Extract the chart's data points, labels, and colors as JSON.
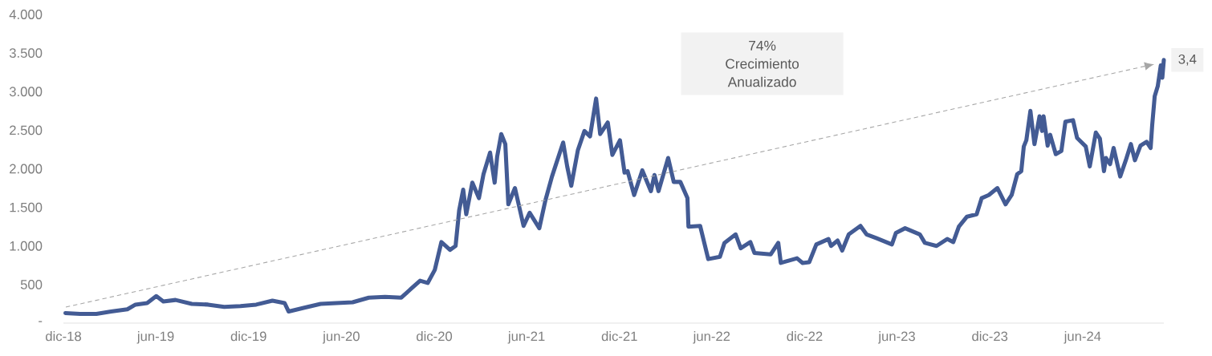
{
  "chart_data": {
    "type": "line",
    "x": [
      "2018-12-05",
      "2019-01-03",
      "2019-02-04",
      "2019-03-05",
      "2019-04-06",
      "2019-04-22",
      "2019-05-15",
      "2019-06-02",
      "2019-06-16",
      "2019-07-10",
      "2019-08-11",
      "2019-09-12",
      "2019-10-14",
      "2019-11-15",
      "2019-12-16",
      "2020-01-17",
      "2020-02-10",
      "2020-02-18",
      "2020-03-20",
      "2020-04-21",
      "2020-05-22",
      "2020-06-23",
      "2020-07-25",
      "2020-08-26",
      "2020-09-27",
      "2020-10-17",
      "2020-11-03",
      "2020-11-18",
      "2020-12-02",
      "2020-12-15",
      "2021-01-01",
      "2021-01-12",
      "2021-01-19",
      "2021-01-27",
      "2021-02-02",
      "2021-02-14",
      "2021-02-27",
      "2021-03-08",
      "2021-03-21",
      "2021-03-30",
      "2021-04-04",
      "2021-04-12",
      "2021-04-20",
      "2021-04-26",
      "2021-05-09",
      "2021-05-17",
      "2021-05-26",
      "2021-06-07",
      "2021-06-26",
      "2021-07-08",
      "2021-07-21",
      "2021-08-12",
      "2021-08-20",
      "2021-08-28",
      "2021-09-10",
      "2021-09-23",
      "2021-10-04",
      "2021-10-16",
      "2021-10-24",
      "2021-11-08",
      "2021-11-17",
      "2021-12-02",
      "2021-12-11",
      "2021-12-17",
      "2021-12-30",
      "2022-01-15",
      "2022-02-01",
      "2022-02-08",
      "2022-02-16",
      "2022-03-07",
      "2022-03-18",
      "2022-03-31",
      "2022-04-14",
      "2022-04-16",
      "2022-05-09",
      "2022-05-25",
      "2022-06-17",
      "2022-06-26",
      "2022-07-18",
      "2022-07-28",
      "2022-08-16",
      "2022-08-24",
      "2022-09-25",
      "2022-10-10",
      "2022-10-15",
      "2022-11-16",
      "2022-11-27",
      "2022-12-10",
      "2022-12-24",
      "2023-01-17",
      "2023-01-22",
      "2023-02-04",
      "2023-02-13",
      "2023-02-26",
      "2023-03-21",
      "2023-04-02",
      "2023-04-22",
      "2023-05-22",
      "2023-05-30",
      "2023-06-17",
      "2023-07-16",
      "2023-07-26",
      "2023-08-18",
      "2023-09-08",
      "2023-09-20",
      "2023-10-01",
      "2023-10-17",
      "2023-11-05",
      "2023-11-15",
      "2023-11-29",
      "2023-12-16",
      "2024-01-01",
      "2024-01-13",
      "2024-01-24",
      "2024-02-01",
      "2024-02-06",
      "2024-02-11",
      "2024-02-19",
      "2024-02-27",
      "2024-03-08",
      "2024-03-13",
      "2024-03-16",
      "2024-03-24",
      "2024-03-29",
      "2024-04-09",
      "2024-04-20",
      "2024-04-28",
      "2024-05-13",
      "2024-05-21",
      "2024-06-07",
      "2024-06-15",
      "2024-06-27",
      "2024-07-05",
      "2024-07-13",
      "2024-07-17",
      "2024-07-25",
      "2024-08-01",
      "2024-08-14",
      "2024-08-25",
      "2024-09-04",
      "2024-09-12",
      "2024-09-23",
      "2024-10-05",
      "2024-10-13",
      "2024-10-16",
      "2024-10-21",
      "2024-10-27",
      "2024-11-02",
      "2024-11-05",
      "2024-11-08"
    ],
    "series": [
      {
        "color": "#435b94",
        "line_style": "solid",
        "values": [
          130,
          120,
          120,
          150,
          180,
          240,
          260,
          350,
          280,
          300,
          250,
          240,
          210,
          220,
          240,
          290,
          260,
          150,
          200,
          250,
          260,
          270,
          330,
          340,
          330,
          450,
          550,
          520,
          690,
          1050,
          950,
          1000,
          1460,
          1730,
          1410,
          1820,
          1620,
          1930,
          2210,
          1820,
          2160,
          2450,
          2320,
          1540,
          1750,
          1520,
          1260,
          1430,
          1230,
          1590,
          1900,
          2340,
          2030,
          1780,
          2240,
          2490,
          2420,
          2910,
          2450,
          2600,
          2180,
          2370,
          1950,
          1970,
          1660,
          1980,
          1710,
          1920,
          1710,
          2140,
          1830,
          1830,
          1620,
          1250,
          1260,
          830,
          860,
          1040,
          1150,
          970,
          1050,
          910,
          890,
          1040,
          780,
          840,
          780,
          790,
          1020,
          1090,
          1000,
          1070,
          940,
          1150,
          1260,
          1150,
          1100,
          1020,
          1170,
          1230,
          1150,
          1040,
          1000,
          1090,
          1050,
          1250,
          1380,
          1410,
          1620,
          1660,
          1750,
          1540,
          1660,
          1930,
          1970,
          2290,
          2370,
          2750,
          2320,
          2680,
          2490,
          2680,
          2300,
          2440,
          2190,
          2230,
          2610,
          2630,
          2400,
          2290,
          2030,
          2470,
          2390,
          1970,
          2140,
          2060,
          2270,
          1900,
          2110,
          2320,
          2110,
          2300,
          2350,
          2270,
          2560,
          2940,
          3070,
          3340,
          3180,
          3410
        ]
      }
    ],
    "xticks": [
      {
        "value": "2018-12-01",
        "label": "dic-18"
      },
      {
        "value": "2019-06-01",
        "label": "jun-19"
      },
      {
        "value": "2019-12-01",
        "label": "dic-19"
      },
      {
        "value": "2020-06-01",
        "label": "jun-20"
      },
      {
        "value": "2020-12-01",
        "label": "dic-20"
      },
      {
        "value": "2021-06-01",
        "label": "jun-21"
      },
      {
        "value": "2021-12-01",
        "label": "dic-21"
      },
      {
        "value": "2022-06-01",
        "label": "jun-22"
      },
      {
        "value": "2022-12-01",
        "label": "dic-22"
      },
      {
        "value": "2023-06-01",
        "label": "jun-23"
      },
      {
        "value": "2023-12-01",
        "label": "dic-23"
      },
      {
        "value": "2024-06-01",
        "label": "jun-24"
      }
    ],
    "xlim": [
      "2018-12-01",
      "2024-11-08"
    ],
    "ylim": [
      0,
      4000
    ],
    "yticks": [
      {
        "value": 0,
        "label": "-"
      },
      500,
      {
        "value": 1000,
        "label": "1.000"
      },
      {
        "value": 1500,
        "label": "1.500"
      },
      {
        "value": 2000,
        "label": "2.000"
      },
      {
        "value": 2500,
        "label": "2.500"
      },
      {
        "value": 3000,
        "label": "3.000"
      },
      {
        "value": 3500,
        "label": "3.500"
      },
      {
        "value": 4000,
        "label": "4.000"
      }
    ],
    "annotations": [
      "74%",
      "Crecimiento",
      "Anualizado",
      {
        "text": "3,4",
        "x": "2024-11-08",
        "y": 3410
      }
    ]
  }
}
